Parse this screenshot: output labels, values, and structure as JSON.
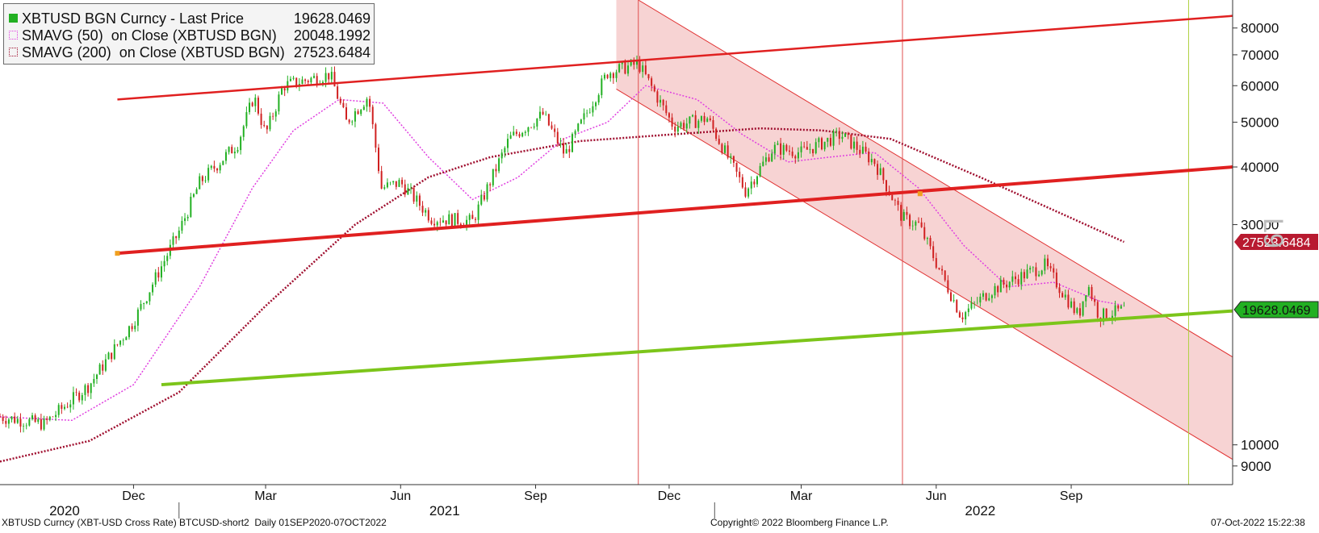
{
  "legend": {
    "rows": [
      {
        "name": "XBTUSD BGN Curncy - Last Price",
        "value": "19628.0469",
        "color": "#22b022",
        "style": "solid"
      },
      {
        "name": "SMAVG (50)  on Close (XBTUSD BGN)",
        "value": "20048.1992",
        "color": "#e040e0",
        "style": "dotted"
      },
      {
        "name": "SMAVG (200)  on Close (XBTUSD BGN)",
        "value": "27523.6484",
        "color": "#a01030",
        "style": "dotted"
      }
    ]
  },
  "footer": {
    "left": "XBTUSD Curncy (XBT-USD Cross Rate) BTCUSD-short2  Daily 01SEP2020-07OCT2022",
    "center": "Copyright© 2022 Bloomberg Finance L.P.",
    "right": "07-Oct-2022 15:22:38"
  },
  "side_mark": "L9",
  "chart_data": {
    "type": "line",
    "scale": "log",
    "ylim": [
      8200,
      92000
    ],
    "xlim": [
      "2020-09-01",
      "2022-12-20"
    ],
    "y_ticks": [
      80000,
      70000,
      60000,
      50000,
      40000,
      30000,
      10000,
      9000
    ],
    "y_tick_labels": [
      "80000",
      "70000",
      "60000",
      "50000",
      "40000",
      "30000",
      "10000",
      "9000"
    ],
    "x_ticks": [
      {
        "date": "2020-12-01",
        "label": "Dec"
      },
      {
        "date": "2021-03-01",
        "label": "Mar"
      },
      {
        "date": "2021-06-01",
        "label": "Jun"
      },
      {
        "date": "2021-09-01",
        "label": "Sep"
      },
      {
        "date": "2021-12-01",
        "label": "Dec"
      },
      {
        "date": "2022-03-01",
        "label": "Mar"
      },
      {
        "date": "2022-06-01",
        "label": "Jun"
      },
      {
        "date": "2022-09-01",
        "label": "Sep"
      }
    ],
    "year_labels": [
      {
        "date": "2020-10-15",
        "label": "2020"
      },
      {
        "date": "2021-07-01",
        "label": "2021"
      },
      {
        "date": "2022-07-01",
        "label": "2022"
      }
    ],
    "year_separators": [
      "2021-01-01",
      "2022-01-01"
    ],
    "series": [
      {
        "name": "XBTUSD BGN Curncy - Last Price",
        "color": "#22b022",
        "x": [
          "2020-09-01",
          "2020-10-01",
          "2020-11-01",
          "2020-12-01",
          "2021-01-01",
          "2021-01-15",
          "2021-02-10",
          "2021-02-21",
          "2021-03-01",
          "2021-03-13",
          "2021-04-14",
          "2021-04-25",
          "2021-05-10",
          "2021-05-19",
          "2021-06-01",
          "2021-06-22",
          "2021-07-20",
          "2021-08-14",
          "2021-09-06",
          "2021-09-21",
          "2021-10-20",
          "2021-11-10",
          "2021-12-04",
          "2021-12-27",
          "2022-01-22",
          "2022-02-10",
          "2022-03-01",
          "2022-03-28",
          "2022-04-20",
          "2022-05-09",
          "2022-05-20",
          "2022-06-18",
          "2022-07-08",
          "2022-08-14",
          "2022-09-06",
          "2022-09-12",
          "2022-09-20",
          "2022-10-07"
        ],
        "values": [
          11500,
          11100,
          13500,
          18500,
          29000,
          37000,
          45000,
          57000,
          47000,
          60000,
          63500,
          50000,
          57000,
          36000,
          37000,
          31000,
          30500,
          46000,
          52000,
          42500,
          64000,
          67000,
          49000,
          51000,
          35500,
          44000,
          43000,
          47000,
          41000,
          31000,
          30000,
          19000,
          21600,
          24500,
          19000,
          22400,
          19000,
          19628
        ]
      },
      {
        "name": "SMAVG (50) on Close (XBTUSD BGN)",
        "color": "#e040e0",
        "x": [
          "2020-09-01",
          "2020-10-20",
          "2020-12-01",
          "2021-01-15",
          "2021-02-20",
          "2021-03-20",
          "2021-04-20",
          "2021-05-20",
          "2021-06-20",
          "2021-07-20",
          "2021-08-20",
          "2021-09-20",
          "2021-10-20",
          "2021-11-15",
          "2021-12-20",
          "2022-01-20",
          "2022-02-20",
          "2022-03-20",
          "2022-04-20",
          "2022-05-20",
          "2022-06-20",
          "2022-07-20",
          "2022-08-20",
          "2022-09-20",
          "2022-10-07"
        ],
        "values": [
          11500,
          11300,
          13500,
          22000,
          36000,
          48000,
          56000,
          55000,
          42000,
          34000,
          38000,
          46000,
          50000,
          60000,
          56000,
          47000,
          41000,
          42000,
          43000,
          36000,
          27000,
          22000,
          22500,
          20500,
          20048
        ]
      },
      {
        "name": "SMAVG (200) on Close (XBTUSD BGN)",
        "color": "#a01030",
        "x": [
          "2020-09-01",
          "2020-11-01",
          "2021-01-01",
          "2021-03-01",
          "2021-05-01",
          "2021-06-20",
          "2021-08-01",
          "2021-10-01",
          "2021-12-01",
          "2022-02-01",
          "2022-03-15",
          "2022-05-01",
          "2022-07-01",
          "2022-09-01",
          "2022-10-07"
        ],
        "values": [
          9200,
          10200,
          13000,
          20000,
          30000,
          38000,
          42000,
          45500,
          47000,
          48500,
          48000,
          46000,
          38000,
          31000,
          27523
        ]
      }
    ],
    "trend_lines": [
      {
        "color": "#e02020",
        "x": [
          "2020-11-20",
          "2022-12-20"
        ],
        "values": [
          56000,
          85000
        ]
      },
      {
        "color": "#e02020",
        "x": [
          "2020-11-20",
          "2022-12-20"
        ],
        "values": [
          26000,
          40000
        ]
      },
      {
        "color": "#7cc51a",
        "x": [
          "2020-12-20",
          "2022-12-20"
        ],
        "values": [
          13500,
          19500
        ]
      }
    ],
    "channel": {
      "color": "#f4c4c4",
      "upper": {
        "x": [
          "2021-10-26",
          "2021-11-10",
          "2022-12-20"
        ],
        "values": [
          92000,
          92000,
          15500
        ]
      },
      "lower": {
        "x": [
          "2021-10-26",
          "2022-12-20"
        ],
        "values": [
          59000,
          9300
        ]
      }
    },
    "vertical_lines": [
      {
        "date": "2021-11-10",
        "color": "#e05050"
      },
      {
        "date": "2022-05-09",
        "color": "#e05050"
      },
      {
        "date": "2022-11-20",
        "color": "#b0d040"
      }
    ],
    "markers": [
      {
        "date": "2020-11-20",
        "value": 26000,
        "color": "#f0a020"
      },
      {
        "date": "2022-05-21",
        "value": 35000,
        "color": "#f0a020"
      }
    ],
    "value_tags": [
      {
        "value": 27523.6484,
        "label": "27523.6484",
        "color": "#b81a30"
      },
      {
        "value": 19628.0469,
        "label": "19628.0469",
        "color": "#22b022"
      }
    ]
  }
}
